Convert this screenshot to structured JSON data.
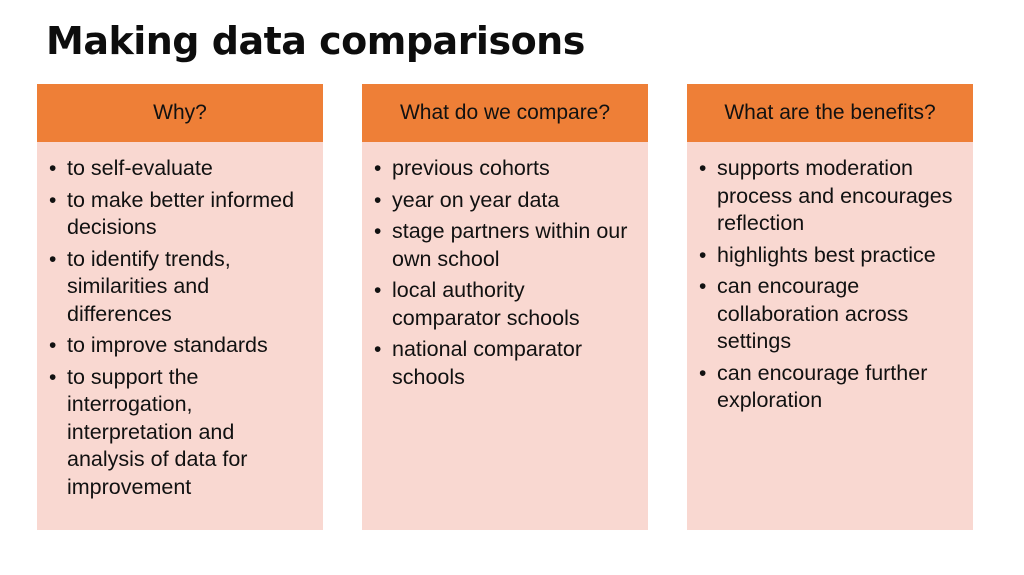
{
  "title": "Making data comparisons",
  "columns": [
    {
      "header": "Why?",
      "bullet_symbol": "•",
      "items": [
        "to self-evaluate",
        "to make better informed decisions",
        "to identify trends, similarities and differences",
        "to improve standards",
        "to support the interrogation, interpretation and analysis of data for improvement"
      ]
    },
    {
      "header": "What do we compare?",
      "bullet_symbol": "•",
      "items": [
        "previous cohorts",
        "year on year data",
        "stage partners within our own school",
        "local authority comparator schools",
        "national comparator schools"
      ]
    },
    {
      "header": "What are the benefits?",
      "bullet_symbol": "•",
      "items": [
        "supports moderation process and encourages reflection",
        "highlights best practice",
        "can encourage collaboration across settings",
        "can encourage further exploration"
      ]
    }
  ],
  "colors": {
    "header_fill": "#ee7f37",
    "body_fill": "#f9d8d1",
    "text": "#111111"
  }
}
